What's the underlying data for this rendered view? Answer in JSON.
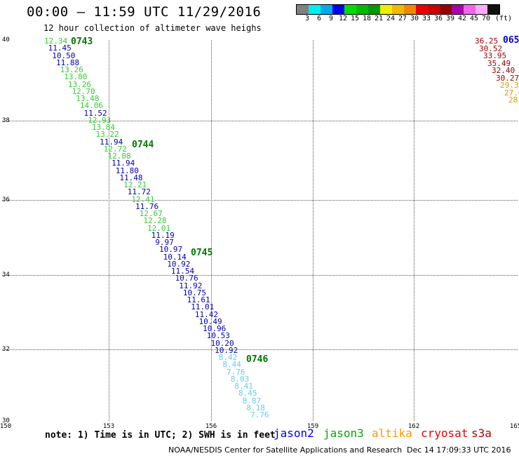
{
  "header": {
    "title": "00:00 – 11:59 UTC 11/29/2016",
    "subtitle": "12 hour collection of altimeter wave heighs"
  },
  "legend": {
    "colors": [
      "#808080",
      "#00eeee",
      "#00aaee",
      "#0000ee",
      "#00dd00",
      "#00bb00",
      "#009900",
      "#eeee00",
      "#eebb00",
      "#ee8800",
      "#ee0000",
      "#cc0000",
      "#990000",
      "#aa00aa",
      "#ee66ee",
      "#ffaaff",
      "#111111"
    ],
    "labels": [
      "3",
      "6",
      "9",
      "12",
      "15",
      "18",
      "21",
      "24",
      "27",
      "30",
      "33",
      "36",
      "39",
      "42",
      "45",
      "70",
      "(ft)"
    ]
  },
  "axes": {
    "lat_labels": [
      "40",
      "38",
      "36",
      "34",
      "32",
      "30"
    ],
    "lon_labels": [
      "150",
      "153",
      "156",
      "159",
      "162",
      "165"
    ]
  },
  "tracks": {
    "colors": {
      "jason2": "#0000cc",
      "jason3": "#33cc33",
      "altika": "#ff9900",
      "cryosat": "#cc0000",
      "s3a": "#990000",
      "saralc": "#66ccee",
      "deepblue": "#0000aa",
      "darkred": "#990000",
      "orange": "#dd9900"
    },
    "time_labels": [
      "0743",
      "0744",
      "0745",
      "0746",
      "065"
    ],
    "main_track": [
      {
        "v": "12.34",
        "c": "jason3"
      },
      {
        "v": "11.45",
        "c": "deepblue"
      },
      {
        "v": "10.50",
        "c": "deepblue"
      },
      {
        "v": "11.88",
        "c": "deepblue"
      },
      {
        "v": "13.26",
        "c": "jason3"
      },
      {
        "v": "13.80",
        "c": "jason3"
      },
      {
        "v": "13.26",
        "c": "jason3"
      },
      {
        "v": "12.70",
        "c": "jason3"
      },
      {
        "v": "13.48",
        "c": "jason3"
      },
      {
        "v": "14.06",
        "c": "jason3"
      },
      {
        "v": "11.52",
        "c": "deepblue"
      },
      {
        "v": "12.93",
        "c": "jason3"
      },
      {
        "v": "13.84",
        "c": "jason3"
      },
      {
        "v": "13.22",
        "c": "jason3"
      },
      {
        "v": "11.94",
        "c": "deepblue"
      },
      {
        "v": "12.72",
        "c": "jason3"
      },
      {
        "v": "12.08",
        "c": "jason3"
      },
      {
        "v": "11.94",
        "c": "deepblue"
      },
      {
        "v": "11.80",
        "c": "deepblue"
      },
      {
        "v": "11.48",
        "c": "deepblue"
      },
      {
        "v": "12.21",
        "c": "jason3"
      },
      {
        "v": "11.72",
        "c": "deepblue"
      },
      {
        "v": "12.41",
        "c": "jason3"
      },
      {
        "v": "11.76",
        "c": "deepblue"
      },
      {
        "v": "12.67",
        "c": "jason3"
      },
      {
        "v": "12.28",
        "c": "jason3"
      },
      {
        "v": "12.01",
        "c": "jason3"
      },
      {
        "v": "11.19",
        "c": "deepblue"
      },
      {
        "v": "9.97",
        "c": "deepblue"
      },
      {
        "v": "10.97",
        "c": "deepblue"
      },
      {
        "v": "10.14",
        "c": "deepblue"
      },
      {
        "v": "10.92",
        "c": "deepblue"
      },
      {
        "v": "11.54",
        "c": "deepblue"
      },
      {
        "v": "10.76",
        "c": "deepblue"
      },
      {
        "v": "11.92",
        "c": "deepblue"
      },
      {
        "v": "10.75",
        "c": "deepblue"
      },
      {
        "v": "11.61",
        "c": "deepblue"
      },
      {
        "v": "11.01",
        "c": "deepblue"
      },
      {
        "v": "11.42",
        "c": "deepblue"
      },
      {
        "v": "10.49",
        "c": "deepblue"
      },
      {
        "v": "10.96",
        "c": "deepblue"
      },
      {
        "v": "10.53",
        "c": "deepblue"
      },
      {
        "v": "10.20",
        "c": "deepblue"
      },
      {
        "v": "10.92",
        "c": "deepblue"
      },
      {
        "v": "8.42",
        "c": "saralc"
      },
      {
        "v": "8.44",
        "c": "saralc"
      },
      {
        "v": "7.76",
        "c": "saralc"
      },
      {
        "v": "8.03",
        "c": "saralc"
      },
      {
        "v": "8.41",
        "c": "saralc"
      },
      {
        "v": "8.45",
        "c": "saralc"
      },
      {
        "v": "8.87",
        "c": "saralc"
      },
      {
        "v": "8.18",
        "c": "saralc"
      },
      {
        "v": "7.76",
        "c": "saralc"
      }
    ],
    "right_track": [
      {
        "v": "36.25",
        "c": "darkred"
      },
      {
        "v": "30.52",
        "c": "darkred"
      },
      {
        "v": "33.95",
        "c": "darkred"
      },
      {
        "v": "35.49",
        "c": "darkred"
      },
      {
        "v": "32.40",
        "c": "darkred"
      },
      {
        "v": "30.27",
        "c": "darkred"
      },
      {
        "v": "29.3",
        "c": "orange"
      },
      {
        "v": "27.0",
        "c": "orange"
      },
      {
        "v": "28",
        "c": "orange"
      }
    ]
  },
  "notes": {
    "note": "note: 1) Time is in UTC; 2) SWH is in feet",
    "satellites": [
      {
        "name": "jason2",
        "color": "#0000ee"
      },
      {
        "name": "jason3",
        "color": "#00aa00"
      },
      {
        "name": "altika",
        "color": "#ff9900"
      },
      {
        "name": "cryosat",
        "color": "#ee0000"
      },
      {
        "name": "s3a",
        "color": "#aa0000"
      }
    ]
  },
  "footer": {
    "credit": "NOAA/NESDIS Center for Satellite Applications and Research",
    "timestamp": "Dec 14 17:09:33 UTC 2016"
  }
}
